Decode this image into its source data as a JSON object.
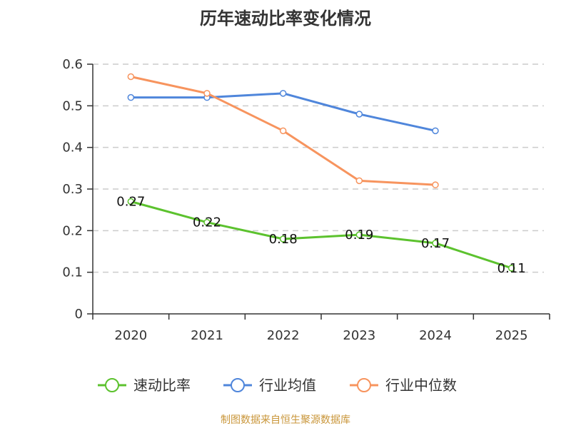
{
  "chart_data": {
    "type": "line",
    "title": "历年速动比率变化情况",
    "categories": [
      "2020",
      "2021",
      "2022",
      "2023",
      "2024",
      "2025"
    ],
    "ylim": [
      0,
      0.6
    ],
    "yticks": [
      "0",
      "0.1",
      "0.2",
      "0.3",
      "0.4",
      "0.5",
      "0.6"
    ],
    "grid": true,
    "legend_position": "bottom",
    "xlabel": "",
    "ylabel": "",
    "series": [
      {
        "name": "速动比率",
        "color": "#5cc22e",
        "values": [
          0.27,
          0.22,
          0.18,
          0.19,
          0.17,
          0.11
        ],
        "labels": [
          "0.27",
          "0.22",
          "0.18",
          "0.19",
          "0.17",
          "0.11"
        ]
      },
      {
        "name": "行业均值",
        "color": "#4f86db",
        "values": [
          0.52,
          0.52,
          0.53,
          0.48,
          0.44,
          null
        ]
      },
      {
        "name": "行业中位数",
        "color": "#f7945e",
        "values": [
          0.57,
          0.53,
          0.44,
          0.32,
          0.31,
          null
        ]
      }
    ]
  },
  "footer": {
    "source": "制图数据来自恒生聚源数据库"
  }
}
